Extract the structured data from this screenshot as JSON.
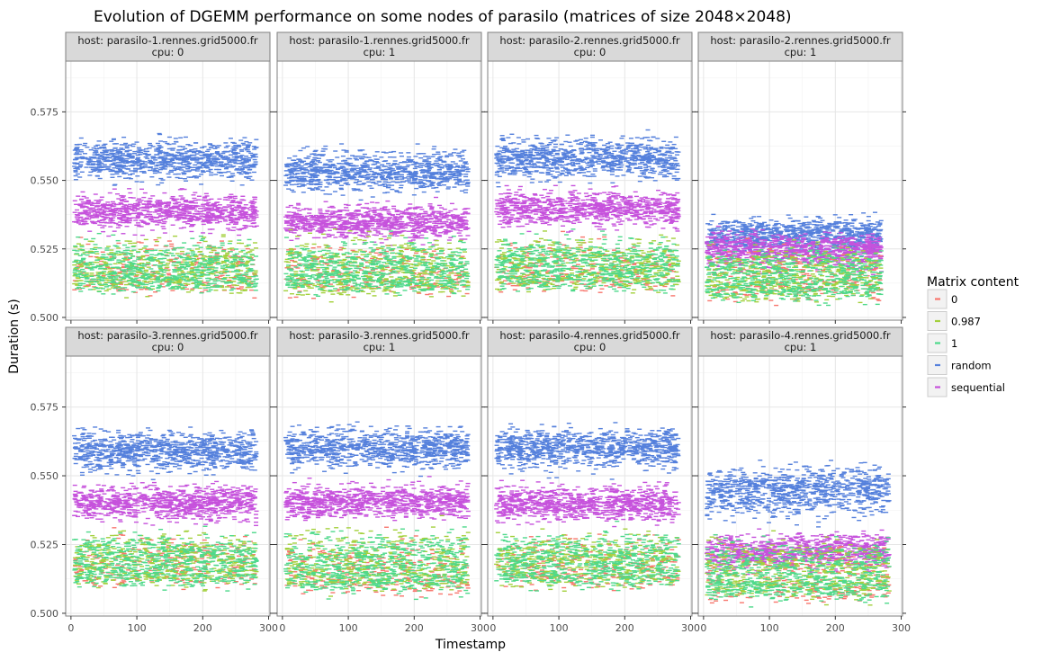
{
  "chart_data": {
    "type": "scatter",
    "title": "Evolution of DGEMM performance on some nodes of parasilo (matrices of size 2048×2048)",
    "xlabel": "Timestamp",
    "ylabel": "Duration (s)",
    "xlim": [
      -8,
      302
    ],
    "ylim": [
      0.499,
      0.5935
    ],
    "x_ticks": [
      0,
      100,
      200,
      300
    ],
    "y_ticks": [
      0.5,
      0.525,
      0.55,
      0.575
    ],
    "y_tick_labels": [
      "0.500",
      "0.525",
      "0.550",
      "0.575"
    ],
    "grid": true,
    "legend": {
      "title": "Matrix content",
      "position": "right",
      "entries": [
        {
          "label": "0",
          "color": "#F8766D"
        },
        {
          "label": "0.987",
          "color": "#A3D03C"
        },
        {
          "label": "1",
          "color": "#4ED98B"
        },
        {
          "label": "random",
          "color": "#5580DC"
        },
        {
          "label": "sequential",
          "color": "#C652DC"
        }
      ]
    },
    "series": [
      {
        "name": "0",
        "color": "#F8766D"
      },
      {
        "name": "0.987",
        "color": "#A3D03C"
      },
      {
        "name": "1",
        "color": "#4ED98B"
      },
      {
        "name": "random",
        "color": "#5580DC"
      },
      {
        "name": "sequential",
        "color": "#C652DC"
      }
    ],
    "panels": [
      {
        "host_label": "host: parasilo-1.rennes.grid5000.fr",
        "cpu_label": "cpu: 0",
        "x_range": [
          5,
          282
        ],
        "levels": {
          "random": [
            0.5575,
            0.0035
          ],
          "sequential": [
            0.5385,
            0.003
          ],
          "0.987": [
            0.52,
            0.004
          ],
          "0": [
            0.5195,
            0.004
          ],
          "1": [
            0.52,
            0.004
          ]
        }
      },
      {
        "host_label": "host: parasilo-1.rennes.grid5000.fr",
        "cpu_label": "cpu: 1",
        "x_range": [
          5,
          282
        ],
        "levels": {
          "random": [
            0.553,
            0.0035
          ],
          "sequential": [
            0.535,
            0.003
          ],
          "0.987": [
            0.519,
            0.005
          ],
          "0": [
            0.5185,
            0.004
          ],
          "1": [
            0.5195,
            0.004
          ]
        }
      },
      {
        "host_label": "host: parasilo-2.rennes.grid5000.fr",
        "cpu_label": "cpu: 0",
        "x_range": [
          5,
          282
        ],
        "levels": {
          "random": [
            0.558,
            0.0035
          ],
          "sequential": [
            0.5395,
            0.003
          ],
          "0.987": [
            0.5205,
            0.004
          ],
          "0": [
            0.52,
            0.004
          ],
          "1": [
            0.5205,
            0.004
          ]
        }
      },
      {
        "host_label": "host: parasilo-2.rennes.grid5000.fr",
        "cpu_label": "cpu: 1",
        "x_range": [
          5,
          270
        ],
        "levels": {
          "random": [
            0.53,
            0.003
          ],
          "sequential": [
            0.5245,
            0.003
          ],
          "0.987": [
            0.517,
            0.004
          ],
          "0": [
            0.5165,
            0.004
          ],
          "1": [
            0.517,
            0.004
          ]
        }
      },
      {
        "host_label": "host: parasilo-3.rennes.grid5000.fr",
        "cpu_label": "cpu: 0",
        "x_range": [
          5,
          282
        ],
        "levels": {
          "random": [
            0.559,
            0.0035
          ],
          "sequential": [
            0.54,
            0.003
          ],
          "0.987": [
            0.521,
            0.004
          ],
          "0": [
            0.52,
            0.004
          ],
          "1": [
            0.5205,
            0.004
          ]
        }
      },
      {
        "host_label": "host: parasilo-3.rennes.grid5000.fr",
        "cpu_label": "cpu: 1",
        "x_range": [
          5,
          282
        ],
        "levels": {
          "random": [
            0.56,
            0.0035
          ],
          "sequential": [
            0.5405,
            0.003
          ],
          "0.987": [
            0.52,
            0.005
          ],
          "0": [
            0.5175,
            0.0045
          ],
          "1": [
            0.519,
            0.005
          ]
        }
      },
      {
        "host_label": "host: parasilo-4.rennes.grid5000.fr",
        "cpu_label": "cpu: 0",
        "x_range": [
          5,
          282
        ],
        "levels": {
          "random": [
            0.56,
            0.0035
          ],
          "sequential": [
            0.54,
            0.003
          ],
          "0.987": [
            0.5205,
            0.004
          ],
          "0": [
            0.5195,
            0.004
          ],
          "1": [
            0.5205,
            0.004
          ]
        }
      },
      {
        "host_label": "host: parasilo-4.rennes.grid5000.fr",
        "cpu_label": "cpu: 1",
        "x_range": [
          5,
          282
        ],
        "levels": {
          "random": [
            0.5445,
            0.004
          ],
          "sequential": [
            0.5225,
            0.003
          ],
          "0.987": [
            0.517,
            0.005
          ],
          "0": [
            0.5145,
            0.005
          ],
          "1": [
            0.516,
            0.005
          ]
        }
      }
    ]
  }
}
